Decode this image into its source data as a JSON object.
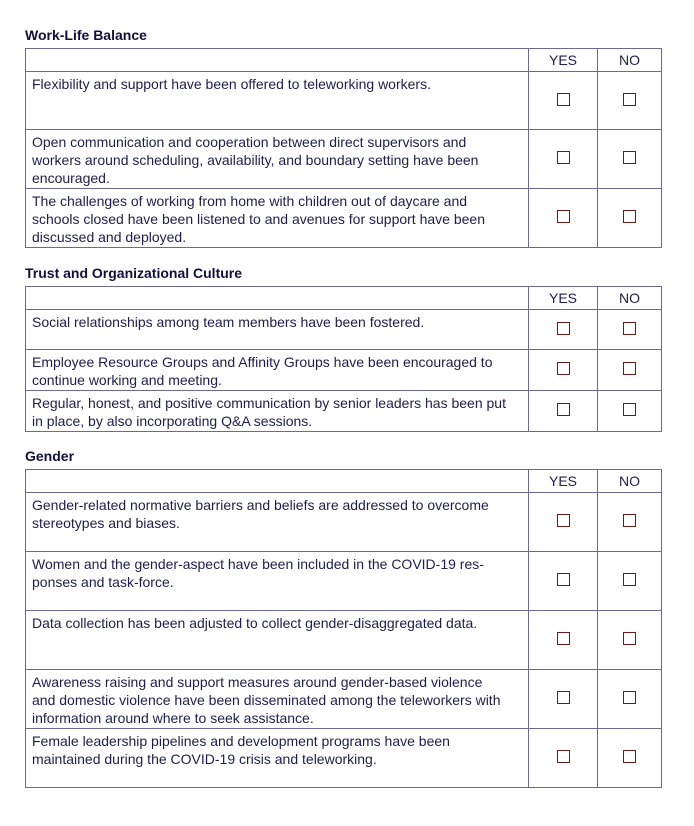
{
  "sections": [
    {
      "title": "Work-Life Balance",
      "yes": "YES",
      "no": "NO",
      "rows": [
        "Flexibility and support have been offered to teleworking workers.",
        "Open communication and cooperation between direct supervisors and\nworkers around scheduling, availability, and boundary setting have been\nencouraged.",
        "The challenges of working from home with children out of daycare and\nschools closed have been listened to and avenues for support have been\ndiscussed and deployed."
      ]
    },
    {
      "title": "Trust and Organizational Culture",
      "yes": "YES",
      "no": "NO",
      "rows": [
        "Social relationships among team members have been fostered.",
        "Employee Resource Groups and Affinity Groups have been encouraged to\ncontinue working and meeting.",
        "Regular, honest, and positive communication by senior leaders has been put\nin place, by also incorporating Q&A sessions."
      ]
    },
    {
      "title": "Gender",
      "yes": "YES",
      "no": "NO",
      "rows": [
        "Gender-related normative barriers and beliefs are addressed to overcome\nstereotypes and biases.",
        "Women and the gender-aspect have been included in the COVID-19 res-\nponses and task-force.",
        "Data collection has been adjusted to collect gender-disaggregated data.",
        "Awareness raising and support measures around gender-based violence\nand domestic violence have been disseminated among the teleworkers with\ninformation around where to seek assistance.",
        "Female leadership pipelines and development programs have been\nmaintained during the COVID-19 crisis and teleworking."
      ]
    }
  ]
}
